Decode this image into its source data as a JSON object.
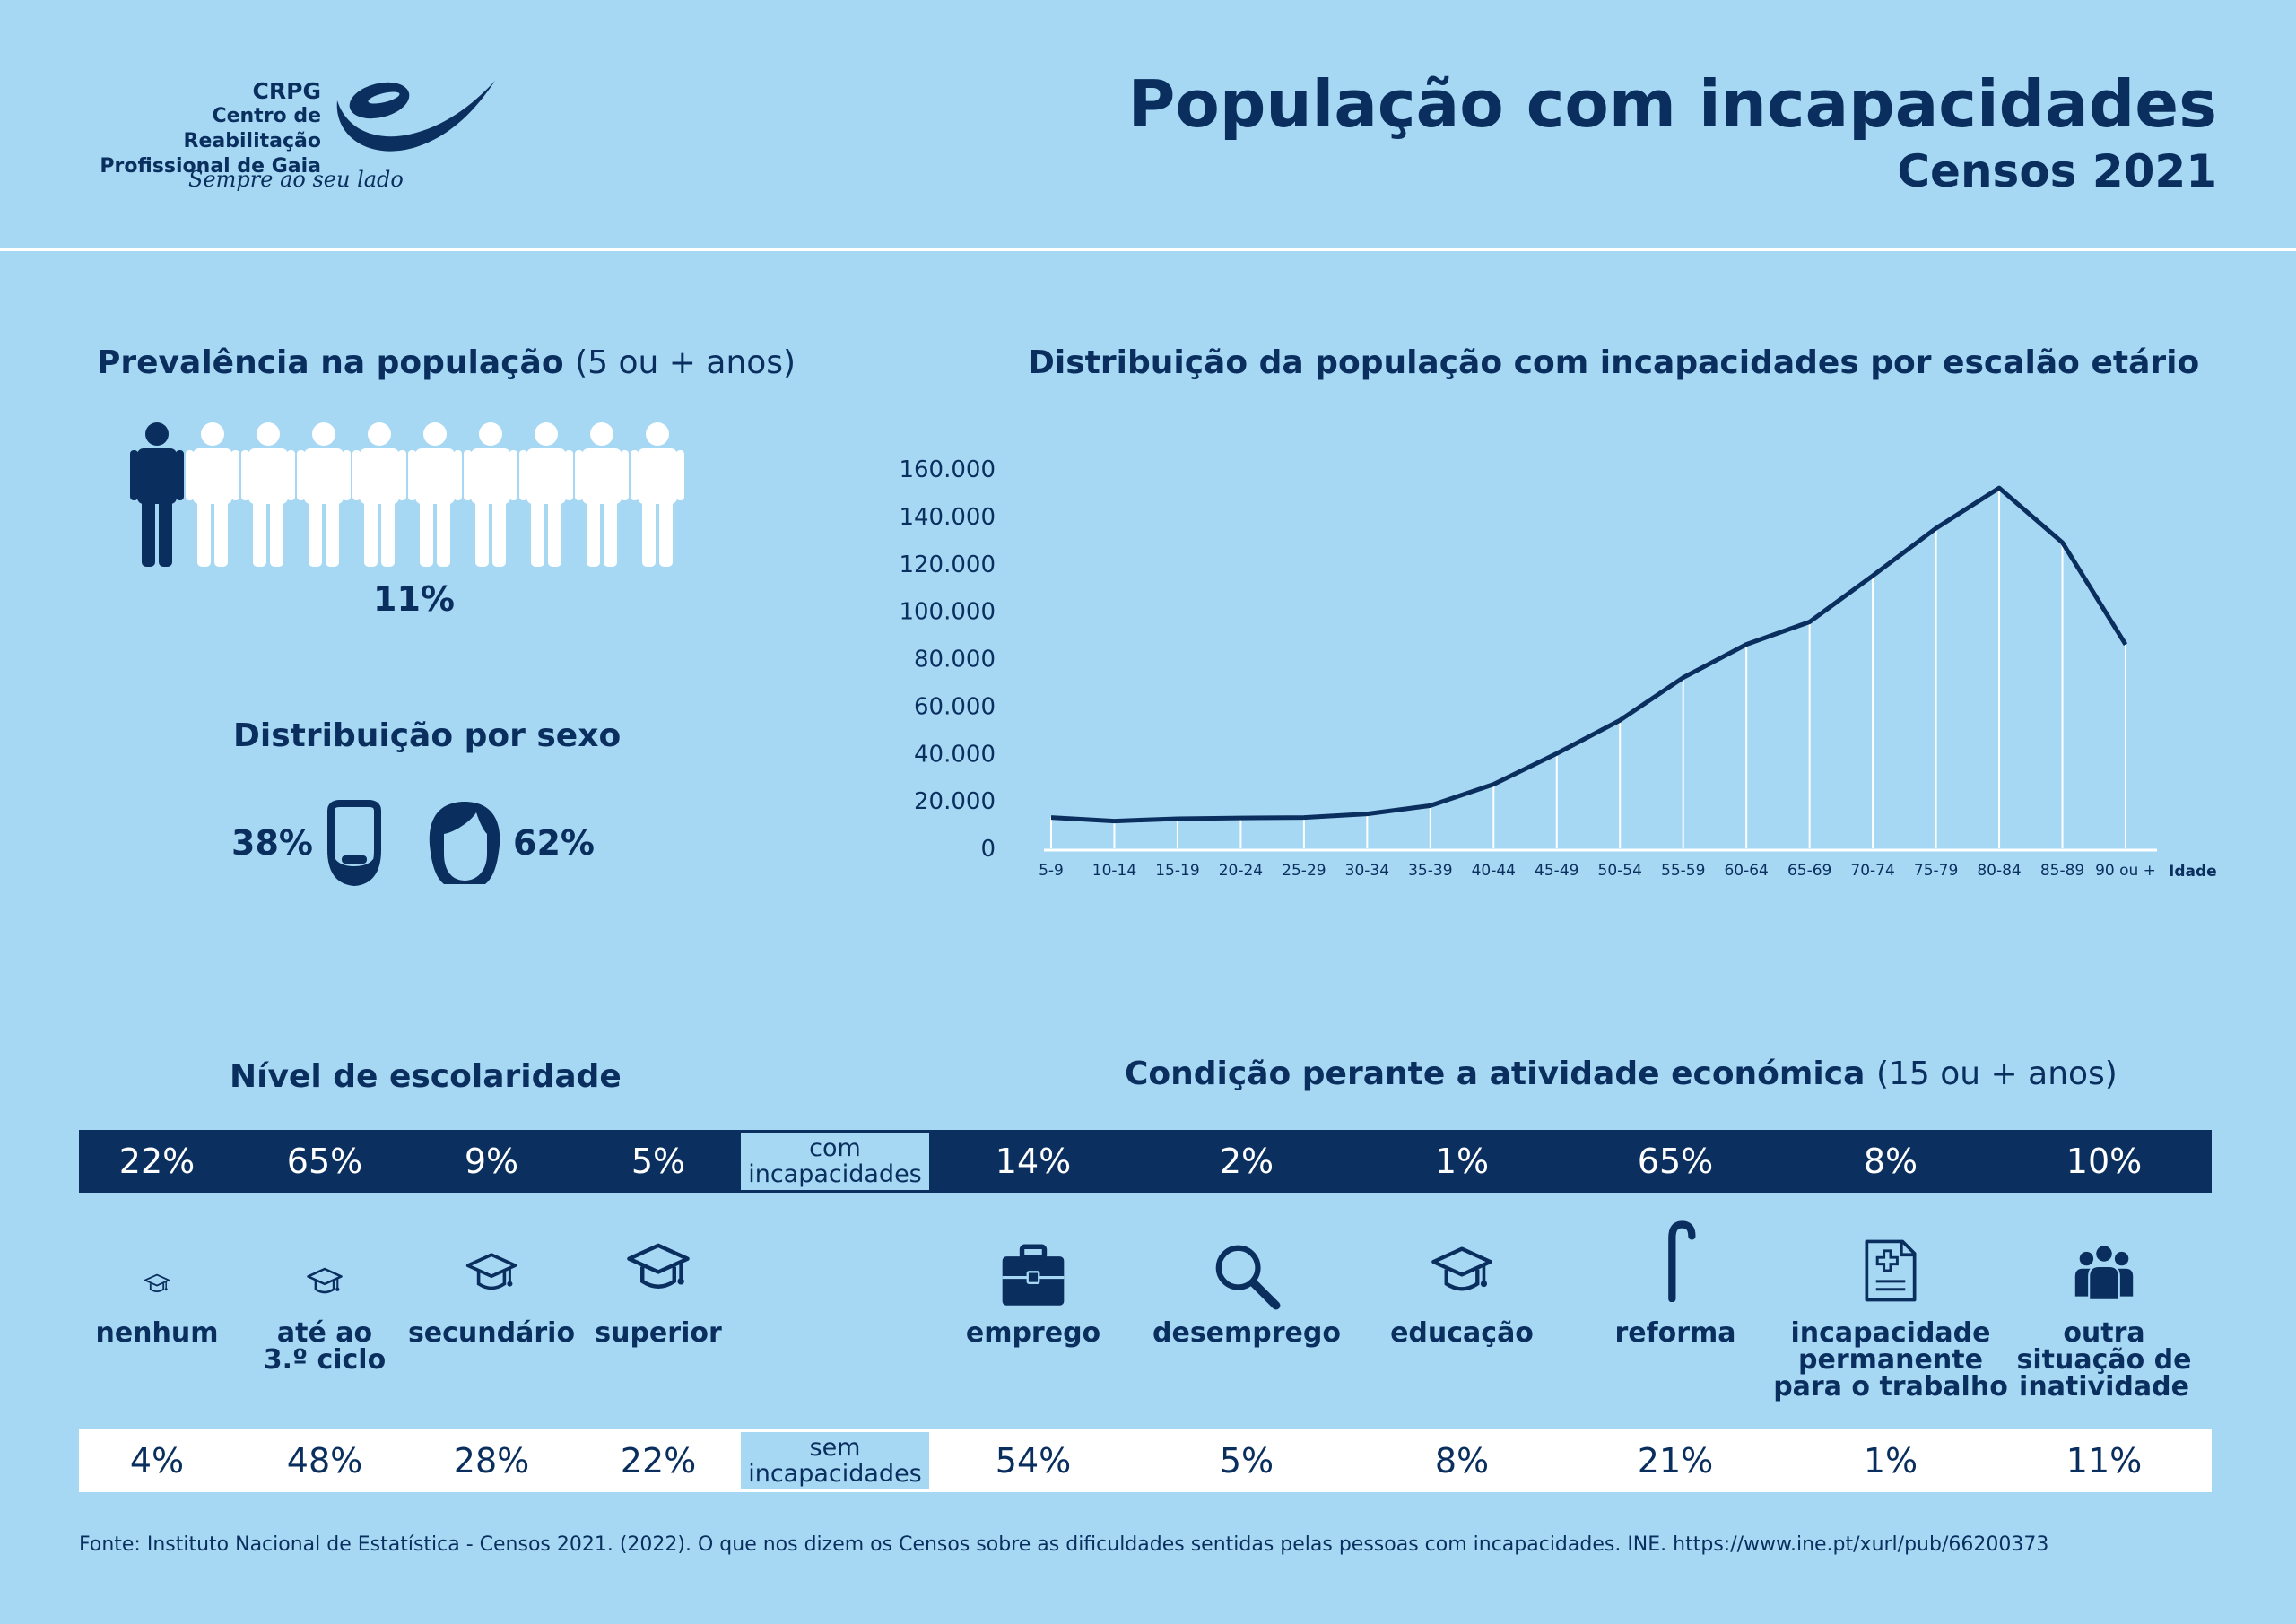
{
  "header": {
    "org_short": "CRPG",
    "org_line1": "Centro de Reabilitação",
    "org_line2": "Profissional de Gaia",
    "tagline": "Sempre ao seu lado",
    "title": "População com incapacidades",
    "subtitle": "Censos 2021"
  },
  "prevalence": {
    "heading": "Prevalência na população",
    "heading_aside": "(5 ou + anos)",
    "value": "11%",
    "fraction": 0.11
  },
  "sex": {
    "heading": "Distribuição por sexo",
    "male": "38%",
    "female": "62%"
  },
  "chart_data": {
    "type": "line",
    "title": "Distribuição da população com incapacidades por escalão etário",
    "xlabel": "Idade",
    "ylabel": "",
    "categories": [
      "5-9",
      "10-14",
      "15-19",
      "20-24",
      "25-29",
      "30-34",
      "35-39",
      "40-44",
      "45-49",
      "50-54",
      "55-59",
      "60-64",
      "65-69",
      "70-74",
      "75-79",
      "80-84",
      "85-89",
      "90 ou +"
    ],
    "values": [
      13000,
      11500,
      12500,
      12800,
      13000,
      14500,
      18000,
      27000,
      40000,
      54000,
      72000,
      86000,
      95500,
      115000,
      135000,
      152000,
      129000,
      86000
    ],
    "ylim": [
      0,
      160000
    ],
    "yticks": [
      "0",
      "20.000",
      "40.000",
      "60.000",
      "80.000",
      "100.000",
      "120.000",
      "140.000",
      "160.000"
    ],
    "grid": "vertical drop lines",
    "colors": {
      "line": "#0a2f5e",
      "drop_lines": "#ffffff"
    }
  },
  "education": {
    "heading": "Nível de escolaridade",
    "categories": [
      {
        "label": "nenhum",
        "icon": "graduation-cap-icon",
        "with": "22%",
        "without": "4%"
      },
      {
        "label": "até ao\n3.º ciclo",
        "icon": "graduation-cap-icon",
        "with": "65%",
        "without": "48%"
      },
      {
        "label": "secundário",
        "icon": "graduation-cap-icon",
        "with": "9%",
        "without": "28%"
      },
      {
        "label": "superior",
        "icon": "graduation-cap-icon",
        "with": "5%",
        "without": "22%"
      }
    ]
  },
  "economic": {
    "heading": "Condição perante a atividade económica",
    "heading_aside": "(15 ou + anos)",
    "categories": [
      {
        "label": "emprego",
        "icon": "briefcase-icon",
        "with": "14%",
        "without": "54%"
      },
      {
        "label": "desemprego",
        "icon": "magnifier-icon",
        "with": "2%",
        "without": "5%"
      },
      {
        "label": "educação",
        "icon": "graduation-cap-icon",
        "with": "1%",
        "without": "8%"
      },
      {
        "label": "reforma",
        "icon": "cane-icon",
        "with": "65%",
        "without": "21%"
      },
      {
        "label": "incapacidade\npermanente\npara o trabalho",
        "icon": "medical-document-icon",
        "with": "8%",
        "without": "1%"
      },
      {
        "label": "outra\nsituação de\ninatividade",
        "icon": "group-people-icon",
        "with": "10%",
        "without": "11%"
      }
    ]
  },
  "bands": {
    "with_label": "com incapacidades",
    "without_label": "sem incapacidades"
  },
  "source": "Fonte: Instituto Nacional de Estatística - Censos 2021. (2022). O que nos dizem os Censos sobre as dificuldades sentidas pelas pessoas com incapacidades. INE. https://www.ine.pt/xurl/pub/66200373",
  "colors": {
    "background": "#a6d8f4",
    "navy": "#0b2f5f",
    "white": "#ffffff"
  }
}
